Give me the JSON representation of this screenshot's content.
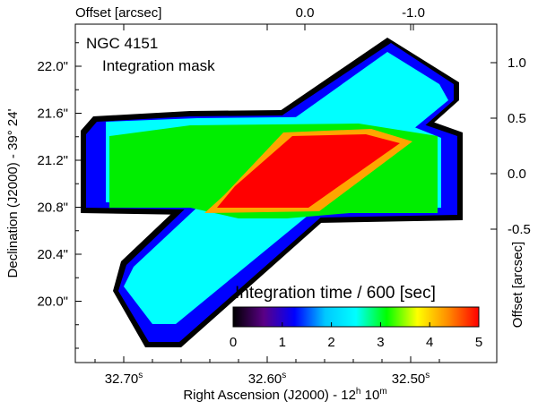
{
  "figure": {
    "annotation_title": "NGC 4151",
    "annotation_subtitle": "Integration mask",
    "x_label_bottom": "Right Ascension (J2000) - 12",
    "x_label_bottom_h": "h",
    "x_label_bottom_mid": " 10",
    "x_label_bottom_m": "m",
    "y_label_left": "Declination (J2000) - 39° 24'",
    "x_label_top": "Offset [arcsec]",
    "y_label_right": "Offset [arcsec]",
    "colorbar_title": "Integration time / 600 [sec]",
    "colormap_colors": [
      "#000000",
      "#5a0085",
      "#0000ff",
      "#00c8ff",
      "#00ffff",
      "#00ff00",
      "#ffff00",
      "#ff8c00",
      "#ff0000"
    ],
    "level_colors": {
      "1": "#0000ff",
      "2": "#00ffff",
      "3": "#00ee00",
      "4": "#ffa500",
      "5": "#ff0000"
    }
  },
  "chart_data": {
    "type": "heatmap",
    "x_bottom_ticks": [
      {
        "value": 32.7,
        "label": "32.70",
        "sup": "s"
      },
      {
        "value": 32.6,
        "label": "32.60",
        "sup": "s"
      },
      {
        "value": 32.5,
        "label": "32.50",
        "sup": "s"
      }
    ],
    "y_left_ticks": [
      {
        "value": 22.0,
        "label": "22.0\""
      },
      {
        "value": 21.6,
        "label": "21.6\""
      },
      {
        "value": 21.2,
        "label": "21.2\""
      },
      {
        "value": 20.8,
        "label": "20.8\""
      },
      {
        "value": 20.4,
        "label": "20.4\""
      },
      {
        "value": 20.0,
        "label": "20.0\""
      }
    ],
    "x_top_ticks": [
      {
        "value": 0.0,
        "label": "0.0"
      },
      {
        "value": -1.0,
        "label": "-1.0"
      }
    ],
    "y_right_ticks": [
      {
        "value": 1.0,
        "label": "1.0"
      },
      {
        "value": 0.5,
        "label": "0.5"
      },
      {
        "value": 0.0,
        "label": "0.0"
      },
      {
        "value": -0.5,
        "label": "-0.5"
      }
    ],
    "colorbar_ticks": [
      {
        "value": 0,
        "label": "0"
      },
      {
        "value": 1,
        "label": "1"
      },
      {
        "value": 2,
        "label": "2"
      },
      {
        "value": 3,
        "label": "3"
      },
      {
        "value": 4,
        "label": "4"
      },
      {
        "value": 5,
        "label": "5"
      }
    ],
    "colorbar_range": [
      0,
      5
    ]
  }
}
